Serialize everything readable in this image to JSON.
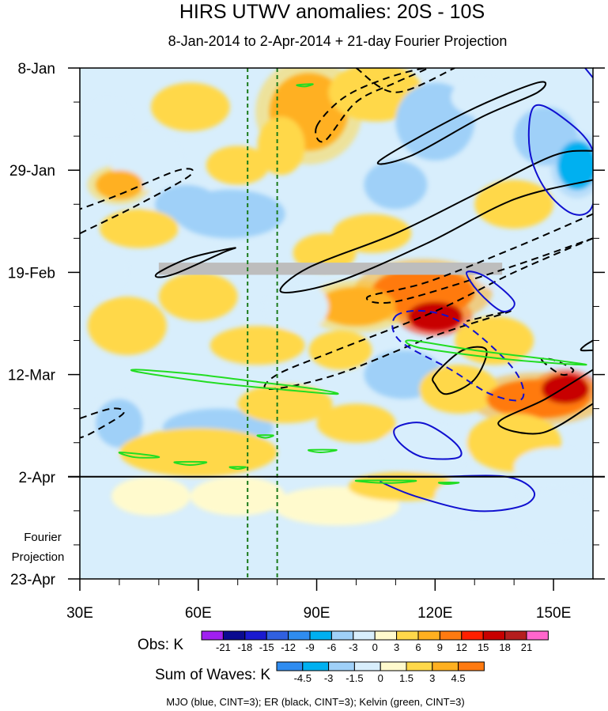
{
  "chart_data": {
    "type": "heatmap",
    "title": "HIRS UTWV anomalies: 20S - 10S",
    "subtitle": "8-Jan-2014 to 2-Apr-2014 + 21-day Fourier Projection",
    "xlabel": "",
    "ylabel": "",
    "xlim": [
      30,
      160
    ],
    "ylim_days": [
      0,
      105
    ],
    "x_ticks": [
      {
        "value": 30,
        "label": "30E"
      },
      {
        "value": 60,
        "label": "60E"
      },
      {
        "value": 90,
        "label": "90E"
      },
      {
        "value": 120,
        "label": "120E"
      },
      {
        "value": 150,
        "label": "150E"
      }
    ],
    "y_ticks": [
      {
        "day": 0,
        "label": "8-Jan"
      },
      {
        "day": 21,
        "label": "29-Jan"
      },
      {
        "day": 42,
        "label": "19-Feb"
      },
      {
        "day": 63,
        "label": "12-Mar"
      },
      {
        "day": 84,
        "label": "2-Apr"
      },
      {
        "day": 105,
        "label": "23-Apr"
      }
    ],
    "projection_label_line1": "Fourier",
    "projection_label_line2": "Projection",
    "observed_end_day": 84,
    "vertical_reference_lons": [
      72.5,
      80
    ],
    "missing_data_band": {
      "day_start": 40,
      "day_end": 42.5,
      "lon_start": 50,
      "lon_end": 137
    },
    "obs_legend": {
      "label": "Obs: K",
      "levels": [
        "-21",
        "-18",
        "-15",
        "-12",
        "-9",
        "-6",
        "-3",
        "0",
        "3",
        "6",
        "9",
        "12",
        "15",
        "18",
        "21"
      ],
      "colors": [
        "#a020f0",
        "#0a0a90",
        "#1a1ad0",
        "#3060e0",
        "#2f8cf0",
        "#00b0f0",
        "#9fd0f8",
        "#d8eefc",
        "#fffacd",
        "#ffd84a",
        "#ffb020",
        "#ff7a10",
        "#ff2000",
        "#c80000",
        "#b41e1e",
        "#ff66cc"
      ]
    },
    "waves_legend": {
      "label": "Sum of Waves: K",
      "levels": [
        "-4.5",
        "-3",
        "-1.5",
        "0",
        "1.5",
        "3",
        "4.5"
      ],
      "colors": [
        "#2f8cf0",
        "#00b0f0",
        "#9fd0f8",
        "#d8eefc",
        "#fffacd",
        "#ffd84a",
        "#ffb020",
        "#ff7a10"
      ]
    },
    "footer": "MJO (blue, CINT=3); ER (black, CINT=3); Kelvin (green, CINT=3)",
    "series": [
      {
        "name": "MJO",
        "color": "#1010d0",
        "contour_interval": 3
      },
      {
        "name": "ER",
        "color": "#000000",
        "contour_interval": 3
      },
      {
        "name": "Kelvin",
        "color": "#22dd22",
        "contour_interval": 3
      }
    ],
    "field_blobs": [
      {
        "lon": 88,
        "day": 9,
        "rx": 10,
        "ry": 8,
        "v": 7
      },
      {
        "lon": 105,
        "day": 5,
        "rx": 12,
        "ry": 6,
        "v": 4
      },
      {
        "lon": 81,
        "day": 16,
        "rx": 6,
        "ry": 6,
        "v": 5
      },
      {
        "lon": 47,
        "day": 19,
        "rx": 9,
        "ry": 6,
        "v": -3
      },
      {
        "lon": 37,
        "day": 10,
        "rx": 6,
        "ry": 4,
        "v": -2
      },
      {
        "lon": 40,
        "day": 24,
        "rx": 6,
        "ry": 3,
        "v": 6
      },
      {
        "lon": 68,
        "day": 30,
        "rx": 14,
        "ry": 5,
        "v": -4
      },
      {
        "lon": 57,
        "day": 28,
        "rx": 8,
        "ry": 4,
        "v": -6
      },
      {
        "lon": 45,
        "day": 33,
        "rx": 10,
        "ry": 4,
        "v": 4
      },
      {
        "lon": 120,
        "day": 11,
        "rx": 10,
        "ry": 8,
        "v": -5
      },
      {
        "lon": 132,
        "day": 6,
        "rx": 8,
        "ry": 4,
        "v": -3
      },
      {
        "lon": 148,
        "day": 14,
        "rx": 8,
        "ry": 6,
        "v": -4
      },
      {
        "lon": 156,
        "day": 20,
        "rx": 5,
        "ry": 5,
        "v": -8
      },
      {
        "lon": 110,
        "day": 24,
        "rx": 8,
        "ry": 5,
        "v": -4
      },
      {
        "lon": 140,
        "day": 28,
        "rx": 10,
        "ry": 5,
        "v": 3
      },
      {
        "lon": 104,
        "day": 34,
        "rx": 10,
        "ry": 4,
        "v": 4
      },
      {
        "lon": 92,
        "day": 38,
        "rx": 8,
        "ry": 4,
        "v": 3
      },
      {
        "lon": 117,
        "day": 46,
        "rx": 13,
        "ry": 5,
        "v": 10
      },
      {
        "lon": 120,
        "day": 51,
        "rx": 7,
        "ry": 3,
        "v": 15
      },
      {
        "lon": 100,
        "day": 49,
        "rx": 10,
        "ry": 4,
        "v": 6
      },
      {
        "lon": 85,
        "day": 49,
        "rx": 8,
        "ry": 5,
        "v": -3
      },
      {
        "lon": 60,
        "day": 47,
        "rx": 10,
        "ry": 5,
        "v": 4
      },
      {
        "lon": 42,
        "day": 53,
        "rx": 10,
        "ry": 6,
        "v": 5
      },
      {
        "lon": 75,
        "day": 57,
        "rx": 12,
        "ry": 4,
        "v": 5
      },
      {
        "lon": 96,
        "day": 58,
        "rx": 8,
        "ry": 4,
        "v": 4
      },
      {
        "lon": 112,
        "day": 63,
        "rx": 10,
        "ry": 5,
        "v": -4
      },
      {
        "lon": 135,
        "day": 56,
        "rx": 10,
        "ry": 5,
        "v": 5
      },
      {
        "lon": 126,
        "day": 66,
        "rx": 10,
        "ry": 5,
        "v": 3
      },
      {
        "lon": 146,
        "day": 68,
        "rx": 13,
        "ry": 4,
        "v": 11
      },
      {
        "lon": 153,
        "day": 66,
        "rx": 6,
        "ry": 3,
        "v": 17
      },
      {
        "lon": 40,
        "day": 73,
        "rx": 6,
        "ry": 5,
        "v": -6
      },
      {
        "lon": 65,
        "day": 74,
        "rx": 14,
        "ry": 4,
        "v": -4
      },
      {
        "lon": 82,
        "day": 69,
        "rx": 12,
        "ry": 4,
        "v": 4
      },
      {
        "lon": 100,
        "day": 73,
        "rx": 10,
        "ry": 4,
        "v": 3
      },
      {
        "lon": 118,
        "day": 78,
        "rx": 12,
        "ry": 5,
        "v": -3
      },
      {
        "lon": 140,
        "day": 77,
        "rx": 12,
        "ry": 6,
        "v": 3
      },
      {
        "lon": 150,
        "day": 82,
        "rx": 10,
        "ry": 4,
        "v": -3
      },
      {
        "lon": 60,
        "day": 79,
        "rx": 20,
        "ry": 5,
        "v": 3
      },
      {
        "lon": 36,
        "day": 42,
        "rx": 6,
        "ry": 5,
        "v": -3
      },
      {
        "lon": 140,
        "day": 42,
        "rx": 10,
        "ry": 4,
        "v": -2
      },
      {
        "lon": 58,
        "day": 8,
        "rx": 10,
        "ry": 5,
        "v": 3
      },
      {
        "lon": 70,
        "day": 20,
        "rx": 8,
        "ry": 4,
        "v": 3
      },
      {
        "lon": 95,
        "day": 90,
        "rx": 16,
        "ry": 4,
        "v": 2
      },
      {
        "lon": 112,
        "day": 86,
        "rx": 14,
        "ry": 3,
        "v": 3
      },
      {
        "lon": 130,
        "day": 88,
        "rx": 10,
        "ry": 4,
        "v": -2
      },
      {
        "lon": 70,
        "day": 88,
        "rx": 12,
        "ry": 4,
        "v": 1
      },
      {
        "lon": 48,
        "day": 88,
        "rx": 10,
        "ry": 4,
        "v": 1
      },
      {
        "lon": 150,
        "day": 92,
        "rx": 10,
        "ry": 5,
        "v": -1
      }
    ],
    "contours": [
      {
        "wave": "ER",
        "dash": true,
        "closed": false,
        "points": [
          [
            30,
            34
          ],
          [
            45,
            28
          ],
          [
            58,
            22
          ],
          [
            55,
            21
          ],
          [
            40,
            26
          ],
          [
            30,
            29
          ]
        ]
      },
      {
        "wave": "ER",
        "dash": true,
        "closed": true,
        "points": [
          [
            90,
            12
          ],
          [
            97,
            6
          ],
          [
            108,
            2
          ],
          [
            118,
            0
          ],
          [
            110,
            3
          ],
          [
            100,
            7
          ],
          [
            92,
            15
          ]
        ]
      },
      {
        "wave": "ER",
        "dash": true,
        "closed": false,
        "points": [
          [
            100,
            0
          ],
          [
            110,
            5
          ],
          [
            125,
            0
          ]
        ]
      },
      {
        "wave": "ER",
        "dash": false,
        "closed": true,
        "points": [
          [
            146,
            3
          ],
          [
            128,
            9
          ],
          [
            106,
            19
          ],
          [
            114,
            18
          ],
          [
            132,
            10
          ],
          [
            146,
            5
          ]
        ]
      },
      {
        "wave": "ER",
        "dash": false,
        "closed": false,
        "points": [
          [
            160,
            17
          ],
          [
            150,
            18
          ],
          [
            130,
            26
          ],
          [
            110,
            34
          ],
          [
            88,
            41
          ],
          [
            81,
            46
          ],
          [
            95,
            44
          ],
          [
            118,
            36
          ],
          [
            140,
            27
          ],
          [
            160,
            23
          ]
        ]
      },
      {
        "wave": "ER",
        "dash": false,
        "closed": true,
        "points": [
          [
            50,
            42
          ],
          [
            58,
            39
          ],
          [
            69,
            37
          ],
          [
            66,
            38
          ],
          [
            55,
            42
          ],
          [
            50,
            43
          ]
        ]
      },
      {
        "wave": "ER",
        "dash": true,
        "closed": false,
        "points": [
          [
            160,
            30
          ],
          [
            140,
            37
          ],
          [
            118,
            44
          ],
          [
            103,
            47
          ],
          [
            110,
            48
          ],
          [
            135,
            42
          ],
          [
            160,
            35
          ]
        ]
      },
      {
        "wave": "ER",
        "dash": true,
        "closed": false,
        "points": [
          [
            160,
            35
          ],
          [
            140,
            42
          ],
          [
            120,
            50
          ],
          [
            95,
            58
          ],
          [
            80,
            63
          ],
          [
            78,
            66
          ],
          [
            95,
            63
          ],
          [
            120,
            55
          ],
          [
            139,
            50
          ],
          [
            128,
            52
          ]
        ]
      },
      {
        "wave": "ER",
        "dash": false,
        "closed": true,
        "points": [
          [
            120,
            63
          ],
          [
            127,
            58
          ],
          [
            133,
            58
          ],
          [
            130,
            64
          ],
          [
            123,
            67
          ],
          [
            120,
            65
          ]
        ]
      },
      {
        "wave": "ER",
        "dash": true,
        "closed": true,
        "points": [
          [
            147,
            60
          ],
          [
            152,
            63
          ],
          [
            155,
            62
          ],
          [
            150,
            60
          ]
        ]
      },
      {
        "wave": "ER",
        "dash": false,
        "closed": false,
        "points": [
          [
            160,
            56
          ],
          [
            158,
            57
          ],
          [
            157,
            58
          ],
          [
            160,
            58
          ]
        ]
      },
      {
        "wave": "ER",
        "dash": false,
        "closed": false,
        "points": [
          [
            160,
            62
          ],
          [
            148,
            68
          ],
          [
            136,
            73
          ],
          [
            147,
            75
          ],
          [
            160,
            69
          ]
        ]
      },
      {
        "wave": "ER",
        "dash": true,
        "closed": false,
        "points": [
          [
            30,
            72
          ],
          [
            38,
            70
          ],
          [
            41,
            71
          ],
          [
            33,
            75
          ],
          [
            30,
            76
          ]
        ]
      },
      {
        "wave": "MJO",
        "dash": false,
        "closed": true,
        "points": [
          [
            145,
            8
          ],
          [
            152,
            10
          ],
          [
            160,
            17
          ],
          [
            160,
            28
          ],
          [
            155,
            30
          ],
          [
            148,
            25
          ],
          [
            144,
            17
          ]
        ]
      },
      {
        "wave": "MJO",
        "dash": false,
        "closed": false,
        "points": [
          [
            158,
            0
          ],
          [
            160,
            2
          ]
        ]
      },
      {
        "wave": "MJO",
        "dash": false,
        "closed": true,
        "points": [
          [
            128,
            42
          ],
          [
            133,
            43
          ],
          [
            140,
            48
          ],
          [
            137,
            50
          ],
          [
            131,
            46
          ]
        ]
      },
      {
        "wave": "MJO",
        "dash": true,
        "closed": true,
        "points": [
          [
            110,
            51
          ],
          [
            118,
            50
          ],
          [
            128,
            53
          ],
          [
            140,
            62
          ],
          [
            142,
            68
          ],
          [
            134,
            67
          ],
          [
            124,
            62
          ],
          [
            111,
            56
          ]
        ]
      },
      {
        "wave": "MJO",
        "dash": false,
        "closed": true,
        "points": [
          [
            110,
            74
          ],
          [
            117,
            73
          ],
          [
            125,
            77
          ],
          [
            126,
            80
          ],
          [
            117,
            80
          ],
          [
            111,
            77
          ]
        ]
      },
      {
        "wave": "MJO",
        "dash": false,
        "closed": false,
        "points": [
          [
            103,
            84
          ],
          [
            120,
            84
          ],
          [
            138,
            84
          ],
          [
            145,
            87
          ],
          [
            142,
            90
          ],
          [
            130,
            91
          ],
          [
            115,
            88
          ],
          [
            106,
            85
          ]
        ]
      },
      {
        "wave": "Kelvin",
        "dash": false,
        "closed": true,
        "points": [
          [
            45,
            62
          ],
          [
            60,
            63
          ],
          [
            75,
            64.5
          ],
          [
            90,
            66
          ],
          [
            95,
            67
          ],
          [
            80,
            66
          ],
          [
            62,
            64.5
          ],
          [
            45,
            62.5
          ]
        ]
      },
      {
        "wave": "Kelvin",
        "dash": false,
        "closed": true,
        "points": [
          [
            114,
            56
          ],
          [
            130,
            58
          ],
          [
            150,
            60
          ],
          [
            158,
            61
          ],
          [
            140,
            60
          ],
          [
            120,
            58
          ],
          [
            114,
            57
          ]
        ]
      },
      {
        "wave": "Kelvin",
        "dash": false,
        "closed": true,
        "points": [
          [
            85,
            3.5
          ],
          [
            89,
            3.3
          ],
          [
            87,
            3.8
          ]
        ]
      },
      {
        "wave": "Kelvin",
        "dash": false,
        "closed": true,
        "points": [
          [
            40,
            79
          ],
          [
            47,
            79.5
          ],
          [
            50,
            80
          ],
          [
            44,
            80
          ]
        ]
      },
      {
        "wave": "Kelvin",
        "dash": false,
        "closed": true,
        "points": [
          [
            54,
            81
          ],
          [
            62,
            81
          ],
          [
            58,
            81.6
          ]
        ]
      },
      {
        "wave": "Kelvin",
        "dash": false,
        "closed": true,
        "points": [
          [
            68,
            82
          ],
          [
            72,
            82
          ],
          [
            70,
            82.4
          ]
        ]
      },
      {
        "wave": "Kelvin",
        "dash": false,
        "closed": true,
        "points": [
          [
            88,
            78.5
          ],
          [
            95,
            78.5
          ],
          [
            91,
            79
          ]
        ]
      },
      {
        "wave": "Kelvin",
        "dash": false,
        "closed": true,
        "points": [
          [
            75,
            75.5
          ],
          [
            79,
            75.5
          ],
          [
            77,
            76
          ]
        ]
      },
      {
        "wave": "Kelvin",
        "dash": false,
        "closed": true,
        "points": [
          [
            100,
            84.8
          ],
          [
            115,
            84.8
          ],
          [
            108,
            85.3
          ]
        ]
      },
      {
        "wave": "Kelvin",
        "dash": false,
        "closed": true,
        "points": [
          [
            121,
            85.2
          ],
          [
            126,
            85.2
          ],
          [
            123,
            85.5
          ]
        ]
      }
    ]
  }
}
